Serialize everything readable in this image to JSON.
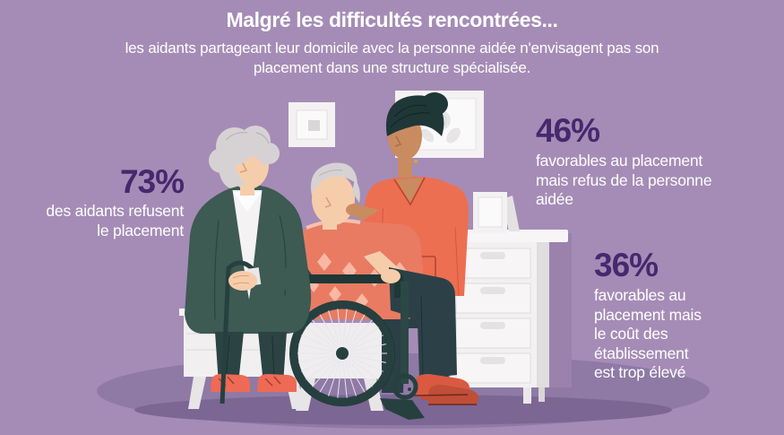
{
  "header": {
    "title": "Malgré les difficultés rencontrées...",
    "subtitle_line1": "les aidants partageant leur domicile avec la personne aidée n'envisagent pas son",
    "subtitle_line2": "placement dans une structure spécialisée."
  },
  "stats": [
    {
      "value": "73%",
      "lines": [
        "des aidants refusent",
        "le placement"
      ]
    },
    {
      "value": "46%",
      "lines": [
        "favorables au placement",
        "mais refus de la personne",
        "aidée"
      ]
    },
    {
      "value": "36%",
      "lines": [
        "favorables au",
        "placement mais",
        "le coût des",
        "établissement",
        "est trop élevé"
      ]
    }
  ],
  "colors": {
    "background": "#a58cb6",
    "stat_value_purple": "#46286e",
    "text_white": "#ffffff",
    "coral_scrubs": "#ec6f52",
    "teal_cardigan": "#3d5a53",
    "ground_shadow": "#8f7aa6"
  },
  "illustration": {
    "name": "caregivers-home-scene",
    "elements": [
      "elderly-woman-with-cane",
      "man-in-wheelchair",
      "nurse-caregiver",
      "wall-frames",
      "dresser-with-photo-frame",
      "nightstand"
    ]
  },
  "chart_data": {
    "type": "table",
    "title": "Malgré les difficultés rencontrées...",
    "subtitle": "les aidants partageant leur domicile avec la personne aidée n'envisagent pas son placement dans une structure spécialisée.",
    "unit": "%",
    "categories": [
      "des aidants refusent le placement",
      "favorables au placement mais refus de la personne aidée",
      "favorables au placement mais le coût des établissement est trop élevé"
    ],
    "values": [
      73,
      46,
      36
    ]
  }
}
